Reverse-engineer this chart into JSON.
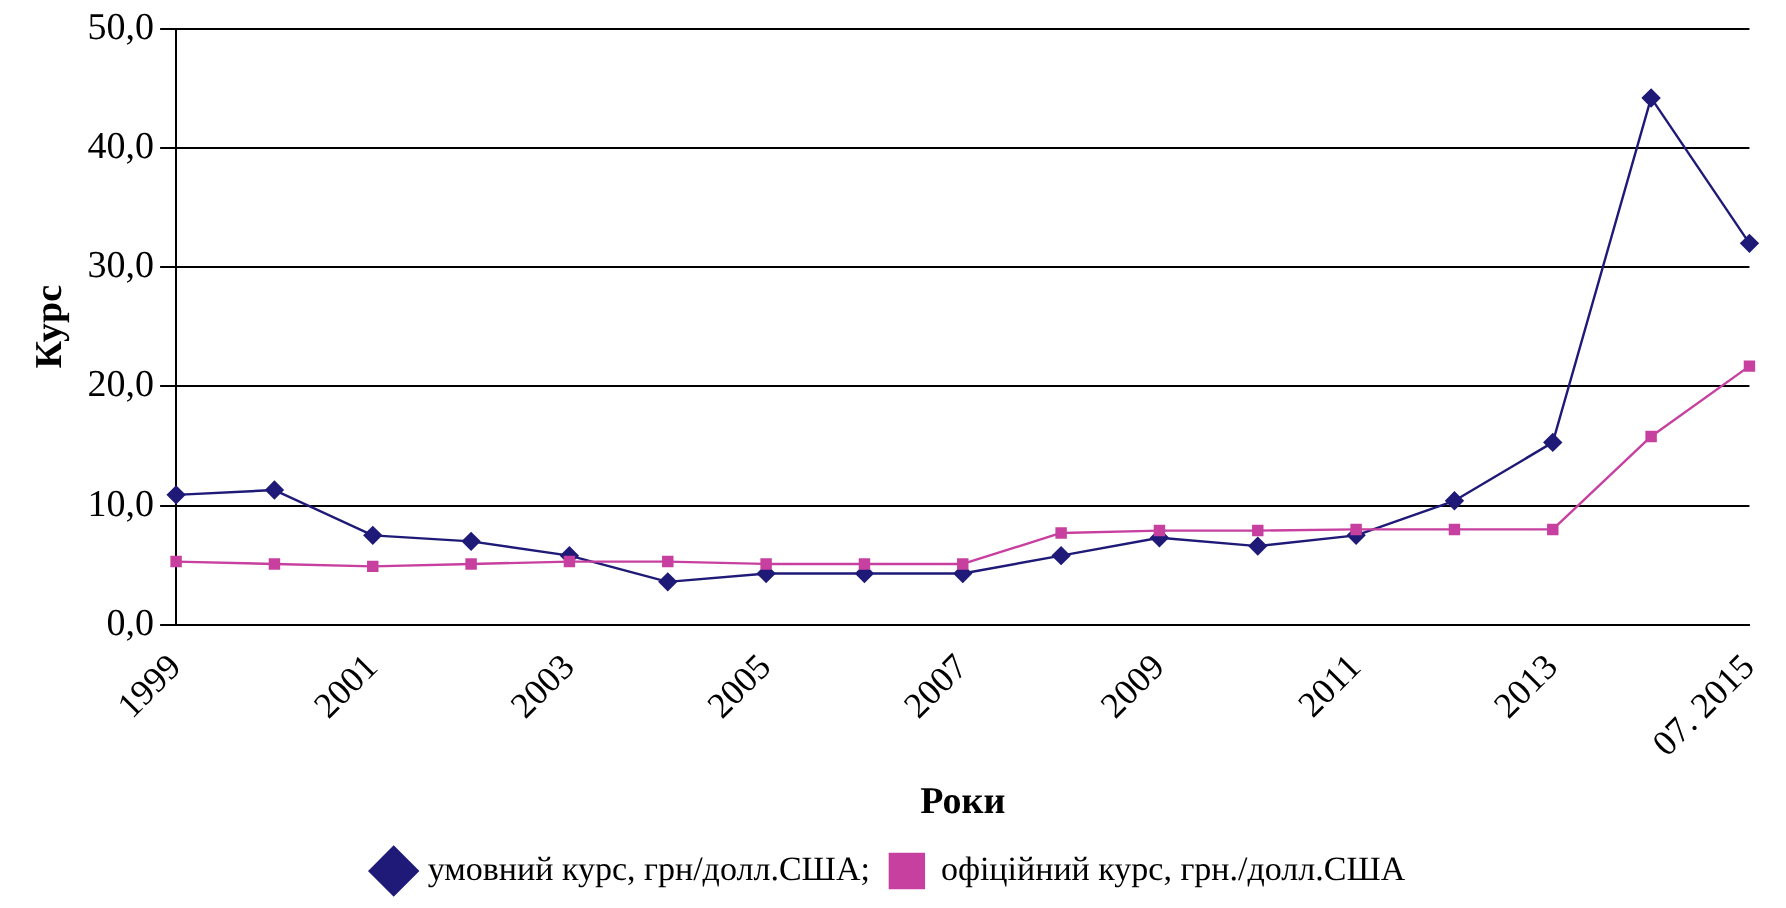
{
  "chart_data": {
    "type": "line",
    "xlabel": "Роки",
    "ylabel": "Курс",
    "categories": [
      "1999",
      null,
      "2001",
      null,
      "2003",
      null,
      "2005",
      null,
      "2007",
      null,
      "2009",
      null,
      "2011",
      null,
      "2013",
      null,
      "07. 2015"
    ],
    "series": [
      {
        "name": "умовний курс, грн/долл.США;",
        "color": "#1f1a78",
        "marker": "diamond",
        "values": [
          10.9,
          11.3,
          7.5,
          7.0,
          5.8,
          3.6,
          4.3,
          4.3,
          4.3,
          5.8,
          7.3,
          6.6,
          7.5,
          10.4,
          15.3,
          44.2,
          32.0
        ]
      },
      {
        "name": "офіційний курс, грн./долл.США",
        "color": "#c8409f",
        "marker": "square",
        "values": [
          5.3,
          5.1,
          4.9,
          5.1,
          5.3,
          5.3,
          5.1,
          5.1,
          5.1,
          7.7,
          7.9,
          7.9,
          8.0,
          8.0,
          8.0,
          15.8,
          21.7
        ]
      }
    ],
    "ylim": [
      0,
      50
    ],
    "yticks": [
      {
        "value": 0,
        "label": "0,0"
      },
      {
        "value": 10,
        "label": "10,0"
      },
      {
        "value": 20,
        "label": "20,0"
      },
      {
        "value": 30,
        "label": "30,0"
      },
      {
        "value": 40,
        "label": "40,0"
      },
      {
        "value": 50,
        "label": "50,0"
      }
    ],
    "grid": "y",
    "legend": "bottom",
    "line_style": "solid"
  }
}
